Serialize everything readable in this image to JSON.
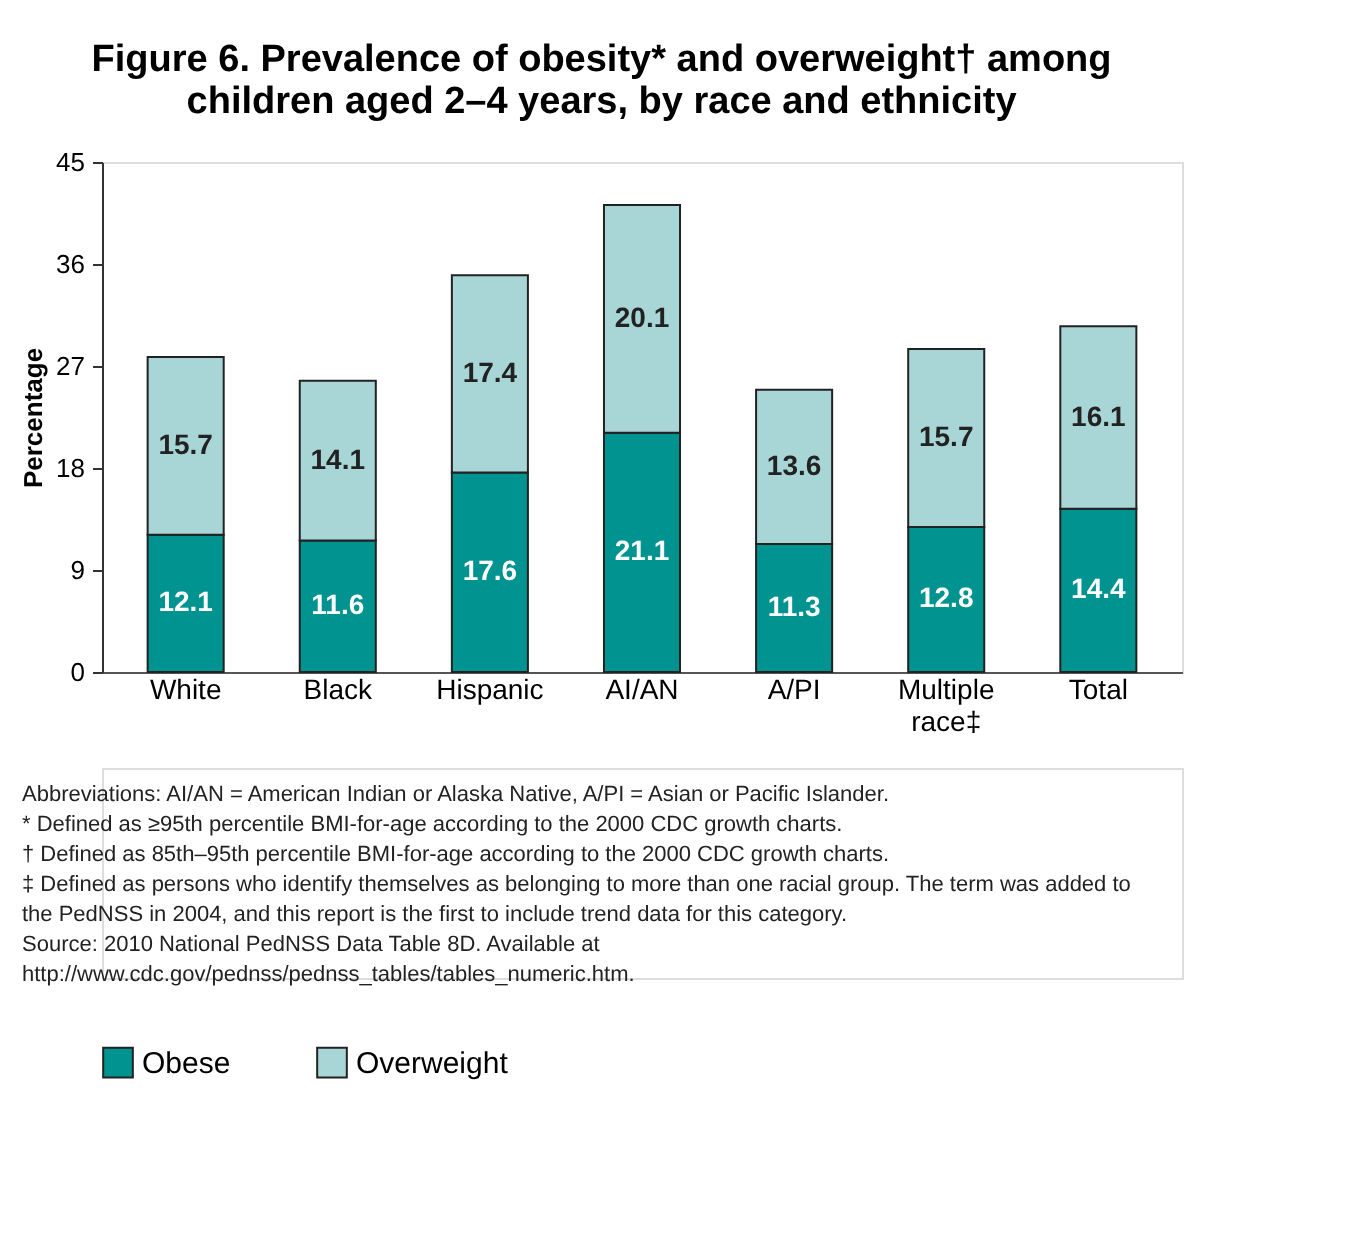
{
  "chart_data": {
    "type": "bar",
    "stacked": true,
    "title": "Figure 6. Prevalence of obesity* and overweight† among children aged 2–4 years, by race and ethnicity",
    "ylabel": "Percentage",
    "categories": [
      "White",
      "Black",
      "Hispanic",
      "AI/AN",
      "A/PI",
      "Multiple race‡",
      "Total"
    ],
    "series": [
      {
        "name": "Obese",
        "color": "#009390",
        "values": [
          12.1,
          11.6,
          17.6,
          21.1,
          11.3,
          12.8,
          14.4
        ]
      },
      {
        "name": "Overweight",
        "color": "#a8d5d6",
        "values": [
          15.7,
          14.1,
          17.4,
          20.1,
          13.6,
          15.7,
          16.1
        ]
      }
    ],
    "ylim": [
      0,
      45
    ],
    "yticks": [
      0,
      9,
      18,
      27,
      36,
      45
    ],
    "grid": false,
    "legend": "bottom",
    "data_labels": true,
    "annotations": [
      "Abbreviations: AI/AN = American Indian or Alaska Native, A/PI = Asian or Pacific Islander.",
      "* Defined as ≥95th percentile BMI-for-age according to the 2000 CDC growth charts.",
      "† Defined as 85th–95th percentile BMI-for-age according to the 2000 CDC growth charts.",
      "‡ Defined as persons who identify themselves as belonging to more than one racial group. The term was added to the PedNSS in 2004, and this report is the first to include trend data for this category.",
      "Source: 2010 National PedNSS Data Table 8D. Available at http://www.cdc.gov/pednss/pednss_tables/tables_numeric.htm."
    ]
  }
}
